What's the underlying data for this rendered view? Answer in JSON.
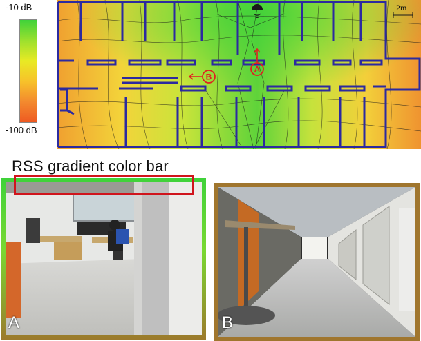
{
  "colorbar": {
    "top_label": "-10 dB",
    "bottom_label": "-100 dB",
    "stops": [
      "#3fd23a",
      "#9be02e",
      "#e8ea24",
      "#f7c22a",
      "#f38a2e",
      "#ee5a22"
    ]
  },
  "floorplan": {
    "scale_label": "2m",
    "markers": [
      {
        "id": "A",
        "label": "A"
      },
      {
        "id": "B",
        "label": "B"
      }
    ],
    "wall_color": "#2c2aa0",
    "marker_color": "#e02020"
  },
  "caption": "RSS gradient color bar",
  "photos": [
    {
      "label": "A",
      "frame_color": "gradient green to brown"
    },
    {
      "label": "B",
      "frame_color": "brown"
    }
  ],
  "highlight_color": "#d0141c"
}
